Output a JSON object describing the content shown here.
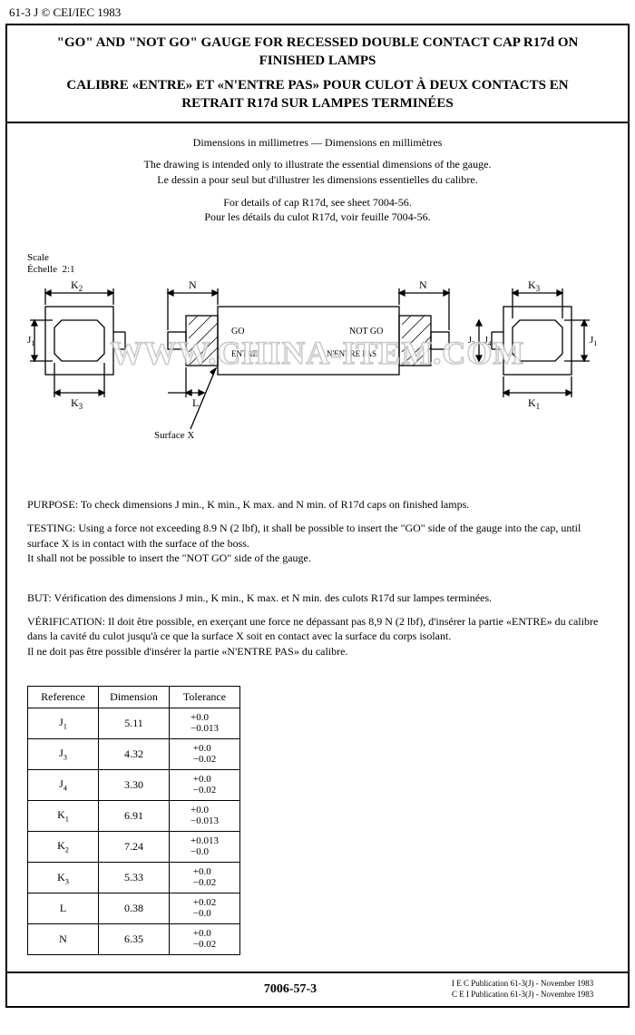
{
  "header": "61-3 J © CEI/IEC 1983",
  "title": {
    "en": "\"GO\" AND \"NOT GO\" GAUGE FOR RECESSED DOUBLE CONTACT CAP R17d ON FINISHED LAMPS",
    "fr": "CALIBRE «ENTRE» ET «N'ENTRE PAS» POUR CULOT À DEUX CONTACTS EN RETRAIT R17d SUR LAMPES TERMINÉES"
  },
  "dim_header": "Dimensions in millimetres — Dimensions en millimètres",
  "intro_en": "The drawing is intended only to illustrate the essential dimensions of the gauge.",
  "intro_fr": "Le dessin a pour seul but d'illustrer les dimensions essentielles du calibre.",
  "detail_en": "For details of cap R17d, see sheet 7004-56.",
  "detail_fr": "Pour les détails du culot R17d, voir feuille 7004-56.",
  "scale_label": "Scale",
  "scale_label_fr": "Échelle",
  "scale_value": "2:1",
  "diagram": {
    "stroke": "#000000",
    "fill": "#ffffff",
    "labels": {
      "K2": "K",
      "K2s": "2",
      "K3": "K",
      "K3s": "3",
      "K1": "K",
      "K1s": "1",
      "J1": "J",
      "J1s": "1",
      "J3": "J",
      "J3s": "3",
      "J4": "J",
      "J4s": "4",
      "N": "N",
      "L": "L",
      "GO": "GO",
      "NOTGO": "NOT GO",
      "ENTRE": "ENTRE",
      "NENTRE": "N'ENTRE PAS",
      "SurfaceX": "Surface X"
    }
  },
  "watermark": "WWW.CHINA-ITEM.COM",
  "purpose": {
    "lead": "PURPOSE:",
    "text": " To check dimensions J min., K min., K max. and N min. of R17d caps on finished lamps."
  },
  "testing": {
    "lead": "TESTING:",
    "text": " Using a force not exceeding 8.9 N (2 lbf), it shall be possible to insert the \"GO\" side of the gauge into the cap, until surface X is in contact with the surface of the boss.",
    "text2": "It shall not be possible to insert the \"NOT GO\" side of the gauge."
  },
  "but": {
    "lead": "BUT:",
    "text": " Vérification des dimensions J min., K min., K max. et N min. des culots R17d sur lampes terminées."
  },
  "verification": {
    "lead": "VÉRIFICATION:",
    "text": " Il doit être possible, en exerçant une force ne dépassant pas 8,9 N (2 lbf), d'insérer la partie «ENTRE» du calibre dans la cavité du culot jusqu'à ce que la surface X soit en contact avec la surface du corps isolant.",
    "text2": "Il ne doit pas être possible d'insérer la partie «N'ENTRE PAS» du calibre."
  },
  "table": {
    "headers": {
      "ref": "Reference",
      "dim": "Dimension",
      "tol": "Tolerance"
    },
    "rows": [
      {
        "ref": "J",
        "sub": "1",
        "dim": "5.11",
        "tol_up": "+0.0",
        "tol_dn": "−0.013"
      },
      {
        "ref": "J",
        "sub": "3",
        "dim": "4.32",
        "tol_up": "+0.0",
        "tol_dn": "−0.02"
      },
      {
        "ref": "J",
        "sub": "4",
        "dim": "3.30",
        "tol_up": "+0.0",
        "tol_dn": "−0.02"
      },
      {
        "ref": "K",
        "sub": "1",
        "dim": "6.91",
        "tol_up": "+0.0",
        "tol_dn": "−0.013"
      },
      {
        "ref": "K",
        "sub": "2",
        "dim": "7.24",
        "tol_up": "+0.013",
        "tol_dn": "−0.0"
      },
      {
        "ref": "K",
        "sub": "3",
        "dim": "5.33",
        "tol_up": "+0.0",
        "tol_dn": "−0.02"
      },
      {
        "ref": "L",
        "sub": "",
        "dim": "0.38",
        "tol_up": "+0.02",
        "tol_dn": "−0.0"
      },
      {
        "ref": "N",
        "sub": "",
        "dim": "6.35",
        "tol_up": "+0.0",
        "tol_dn": "−0.02"
      }
    ]
  },
  "footer": {
    "doc_no": "7006-57-3",
    "pub1": "I E C Publication 61-3(J) - November 1983",
    "pub2": "C E I Publication 61-3(J) - Novembre 1983"
  }
}
